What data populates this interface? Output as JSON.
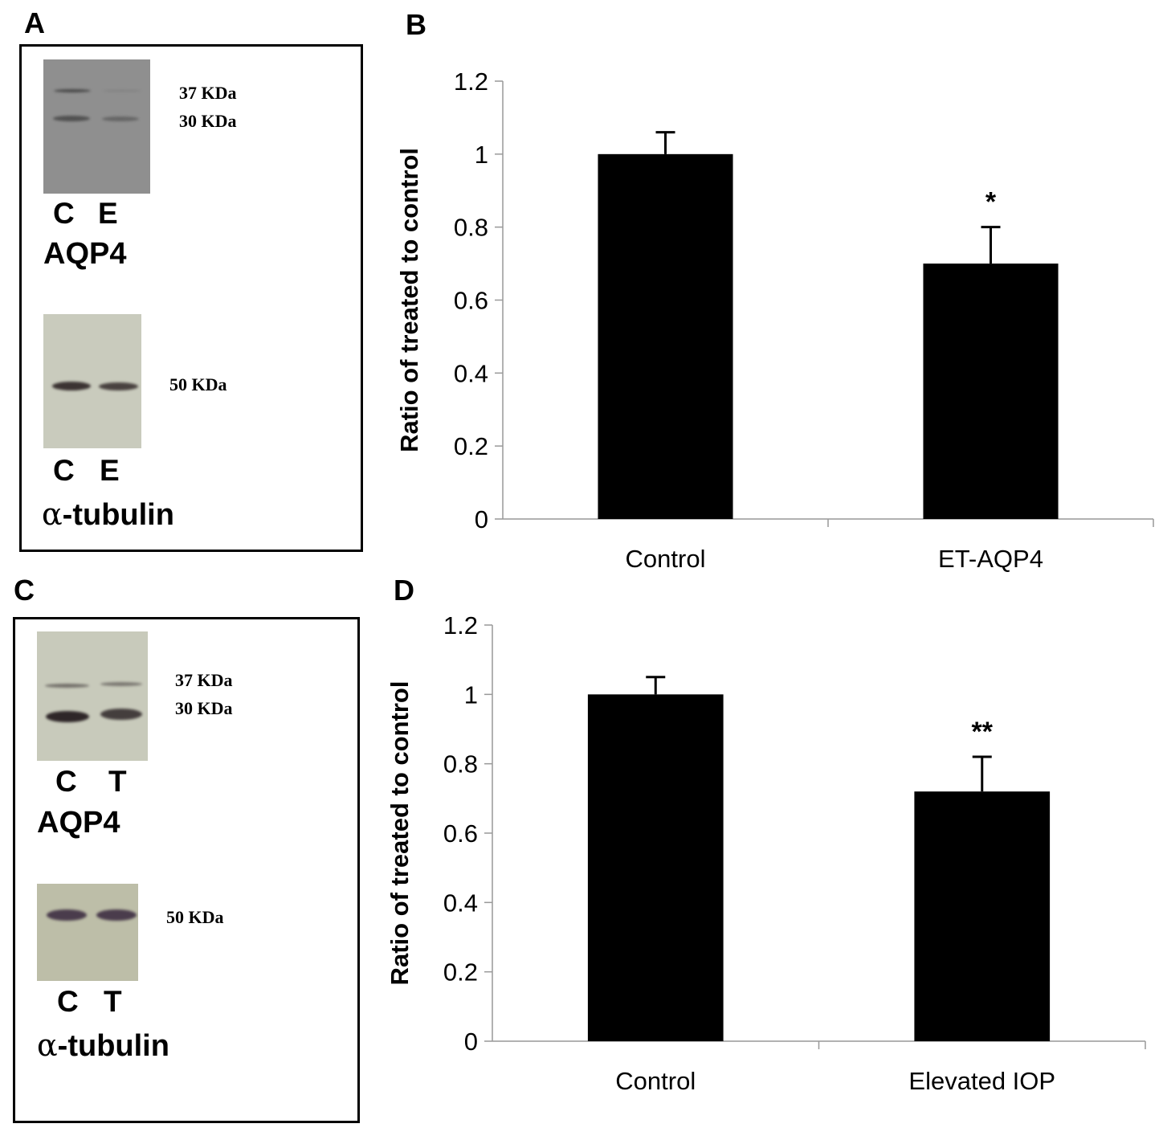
{
  "panels": {
    "A": {
      "letter": "A",
      "upper_blot": {
        "kda_labels": [
          "37 KDa",
          "30 KDa"
        ],
        "lanes": [
          "C",
          "E"
        ],
        "protein": "AQP4",
        "bg": "#8f8f8f",
        "band_color": "#4a4a4a"
      },
      "lower_blot": {
        "kda_labels": [
          "50 KDa"
        ],
        "lanes": [
          "C",
          "E"
        ],
        "protein_symbol": "α",
        "protein_rest": "-tubulin",
        "bg": "#c9cbbd",
        "band_color": "#3b3332"
      }
    },
    "B": {
      "letter": "B"
    },
    "C": {
      "letter": "C",
      "upper_blot": {
        "kda_labels": [
          "37 KDa",
          "30 KDa"
        ],
        "lanes": [
          "C",
          "T"
        ],
        "protein": "AQP4",
        "bg": "#c8cabb",
        "band_color": "#2e2628"
      },
      "lower_blot": {
        "kda_labels": [
          "50 KDa"
        ],
        "lanes": [
          "C",
          "T"
        ],
        "protein_symbol": "α",
        "protein_rest": "-tubulin",
        "bg": "#bdbea8",
        "band_color": "#4a3c4c"
      }
    },
    "D": {
      "letter": "D"
    }
  },
  "chart_data": [
    {
      "id": "B",
      "type": "bar",
      "title": "",
      "categories": [
        "Control",
        "ET-AQP4"
      ],
      "values": [
        1.0,
        0.7
      ],
      "error_plus": [
        0.06,
        0.1
      ],
      "annotations": [
        "",
        "*"
      ],
      "xlabel": "",
      "ylabel": "Ratio of treated to control",
      "ylim": [
        0,
        1.2
      ],
      "yticks": [
        0,
        0.2,
        0.4,
        0.6,
        0.8,
        1,
        1.2
      ],
      "ytick_labels": [
        "0",
        "0.2",
        "0.4",
        "0.6",
        "0.8",
        "1",
        "1.2"
      ],
      "grid": false,
      "bar_color": "#000000"
    },
    {
      "id": "D",
      "type": "bar",
      "title": "",
      "categories": [
        "Control",
        "Elevated IOP"
      ],
      "values": [
        1.0,
        0.72
      ],
      "error_plus": [
        0.05,
        0.1
      ],
      "annotations": [
        "",
        "**"
      ],
      "xlabel": "",
      "ylabel": "Ratio of treated to control",
      "ylim": [
        0,
        1.2
      ],
      "yticks": [
        0,
        0.2,
        0.4,
        0.6,
        0.8,
        1,
        1.2
      ],
      "ytick_labels": [
        "0",
        "0.2",
        "0.4",
        "0.6",
        "0.8",
        "1",
        "1.2"
      ],
      "grid": false,
      "bar_color": "#000000"
    }
  ]
}
